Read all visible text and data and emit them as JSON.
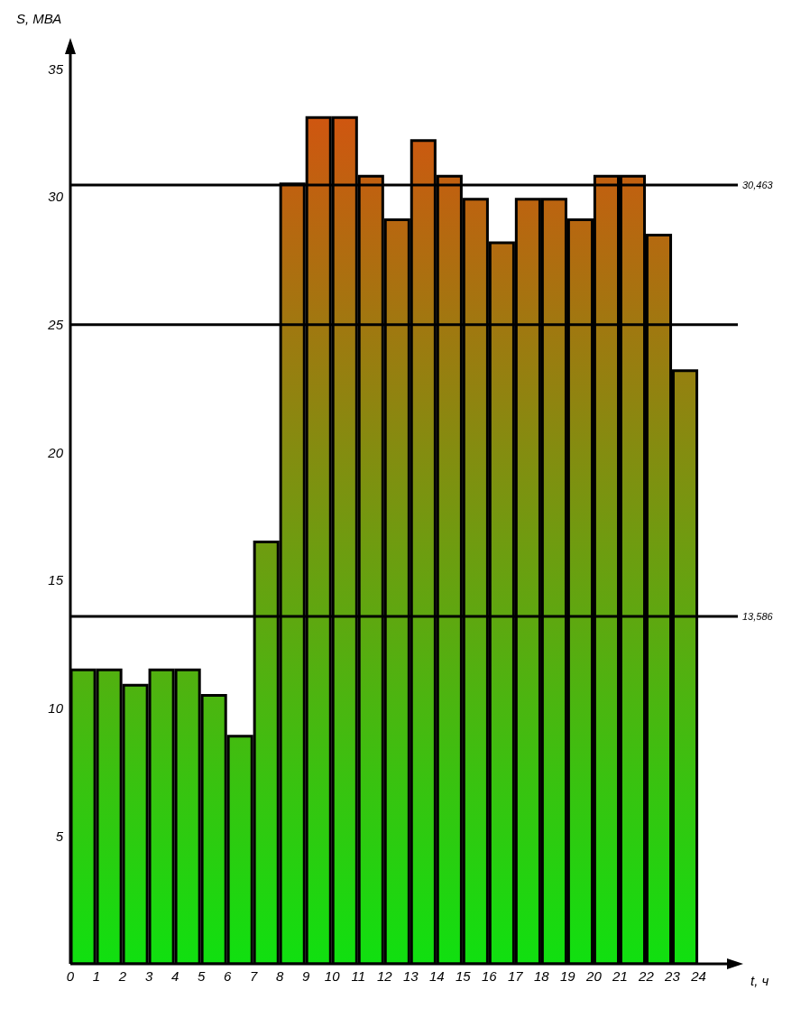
{
  "chart_data": {
    "type": "histogram",
    "xlabel": "t, ч",
    "ylabel": "S, МВА",
    "bins": [
      0,
      1,
      2,
      3,
      4,
      5,
      6,
      7,
      8,
      9,
      10,
      11,
      12,
      13,
      14,
      15,
      16,
      17,
      18,
      19,
      20,
      21,
      22,
      23,
      24
    ],
    "values": [
      11.5,
      11.5,
      10.9,
      11.5,
      11.5,
      10.5,
      8.9,
      16.5,
      30.5,
      33.1,
      33.1,
      30.8,
      29.1,
      32.2,
      30.8,
      29.9,
      28.2,
      29.9,
      29.9,
      29.1,
      30.8,
      30.8,
      28.5,
      23.2
    ],
    "xlim": [
      0,
      25.5
    ],
    "xticks": [
      0,
      1,
      2,
      3,
      4,
      5,
      6,
      7,
      8,
      9,
      10,
      11,
      12,
      13,
      14,
      15,
      16,
      17,
      18,
      19,
      20,
      21,
      22,
      23,
      24
    ],
    "ylim": [
      0,
      36
    ],
    "yticks": [
      5,
      10,
      15,
      20,
      25,
      30,
      35
    ],
    "ref_lines": [
      {
        "axis": "y",
        "value": 30.463,
        "label": "30,463"
      },
      {
        "axis": "y",
        "value": 25,
        "label": null
      },
      {
        "axis": "y",
        "value": 13.586,
        "label": "13,586"
      }
    ],
    "grid": false,
    "legend": false
  }
}
